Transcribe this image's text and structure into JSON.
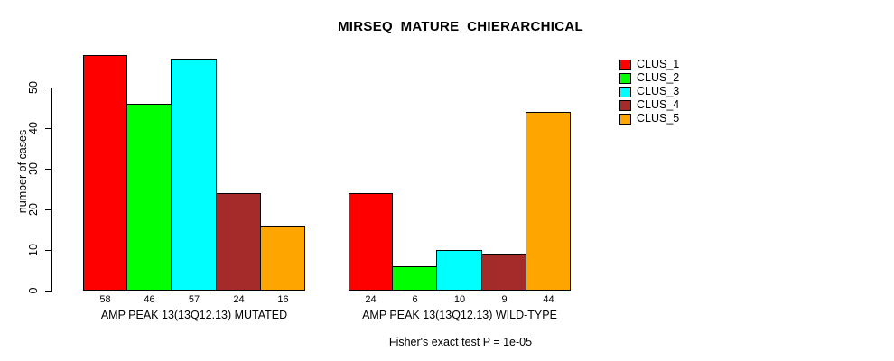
{
  "chart_data": {
    "type": "bar",
    "title": "MIRSEQ_MATURE_CHIERARCHICAL",
    "xlabel": "",
    "ylabel": "number of cases",
    "ylim": [
      0,
      58
    ],
    "yticks": [
      0,
      10,
      20,
      30,
      40,
      50
    ],
    "grid": false,
    "legend_position": "top-right",
    "series": [
      {
        "name": "CLUS_1",
        "color": "#FF0000"
      },
      {
        "name": "CLUS_2",
        "color": "#00FF00"
      },
      {
        "name": "CLUS_3",
        "color": "#00FFFF"
      },
      {
        "name": "CLUS_4",
        "color": "#A52A2A"
      },
      {
        "name": "CLUS_5",
        "color": "#FFA500"
      }
    ],
    "groups": [
      {
        "label": "AMP PEAK 13(13Q12.13) MUTATED",
        "values": [
          58,
          46,
          57,
          24,
          16
        ]
      },
      {
        "label": "AMP PEAK 13(13Q12.13) WILD-TYPE",
        "values": [
          24,
          6,
          10,
          9,
          44
        ]
      }
    ],
    "annotation": "Fisher's exact test P = 1e-05"
  }
}
